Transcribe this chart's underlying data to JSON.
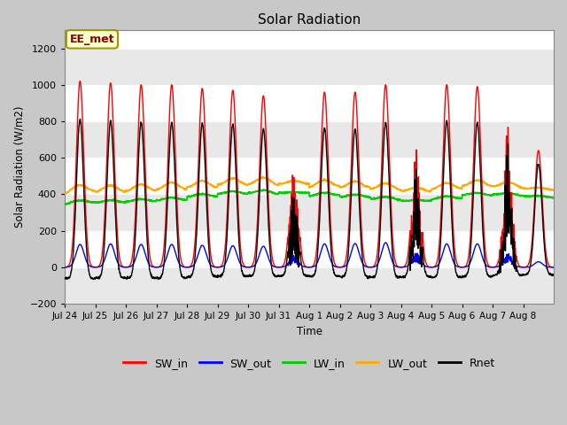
{
  "title": "Solar Radiation",
  "ylabel": "Solar Radiation (W/m2)",
  "xlabel": "Time",
  "ylim": [
    -200,
    1300
  ],
  "yticks": [
    -200,
    0,
    200,
    400,
    600,
    800,
    1000,
    1200
  ],
  "num_days": 16,
  "x_tick_labels": [
    "Jul 24",
    "Jul 25",
    "Jul 26",
    "Jul 27",
    "Jul 28",
    "Jul 29",
    "Jul 30",
    "Jul 31",
    "Aug 1",
    "Aug 2",
    "Aug 3",
    "Aug 4",
    "Aug 5",
    "Aug 6",
    "Aug 7",
    "Aug 8"
  ],
  "colors": {
    "SW_in": "#ff0000",
    "SW_out": "#0000ff",
    "LW_in": "#00cc00",
    "LW_out": "#ffaa00",
    "Rnet": "#000000"
  },
  "annotation_text": "EE_met",
  "annotation_box_color": "#ffffcc",
  "annotation_box_edge": "#999900",
  "plot_bg_color": "#ffffff",
  "grid_band_color": "#e8e8e8"
}
